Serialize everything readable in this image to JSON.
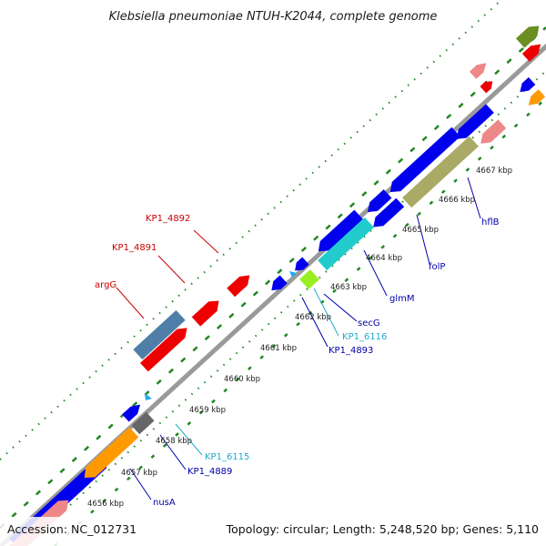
{
  "map": {
    "title": "Klebsiella pneumoniae NTUH-K2044, complete genome",
    "accession": "Accession: NC_012731",
    "topology": "Topology: circular; Length: 5,248,520 bp; Genes: 5,110"
  },
  "ticks": [
    "4656 kbp",
    "4657 kbp",
    "4658 kbp",
    "4659 kbp",
    "4660 kbp",
    "4661 kbp",
    "4662 kbp",
    "4663 kbp",
    "4664 kbp",
    "4665 kbp",
    "4666 kbp",
    "4667 kbp"
  ],
  "gene_labels": [
    {
      "name": "KP1_4892",
      "color": "#cc0000"
    },
    {
      "name": "KP1_4891",
      "color": "#cc0000"
    },
    {
      "name": "argG",
      "color": "#cc0000"
    },
    {
      "name": "hflB",
      "color": "#0000aa"
    },
    {
      "name": "folP",
      "color": "#0000aa"
    },
    {
      "name": "glmM",
      "color": "#0000aa"
    },
    {
      "name": "secG",
      "color": "#0000aa"
    },
    {
      "name": "KP1_6116",
      "color": "#22aacc"
    },
    {
      "name": "KP1_4893",
      "color": "#0000aa"
    },
    {
      "name": "KP1_6115",
      "color": "#22aacc"
    },
    {
      "name": "KP1_4889",
      "color": "#0000aa"
    },
    {
      "name": "nusA",
      "color": "#0000aa"
    }
  ],
  "colors": {
    "blue": "#0000ee",
    "red": "#ee0000",
    "pink": "#ee8888",
    "steelblue": "#4f7fa8",
    "olive": "#aaaa66",
    "cyan": "#22cccc",
    "lime": "#99ee22",
    "orange": "#ff9900",
    "gray": "#666666",
    "darkolive": "#6b8e23",
    "skyblue": "#22aaee",
    "backbone": "#999999",
    "dots": "#228822"
  }
}
